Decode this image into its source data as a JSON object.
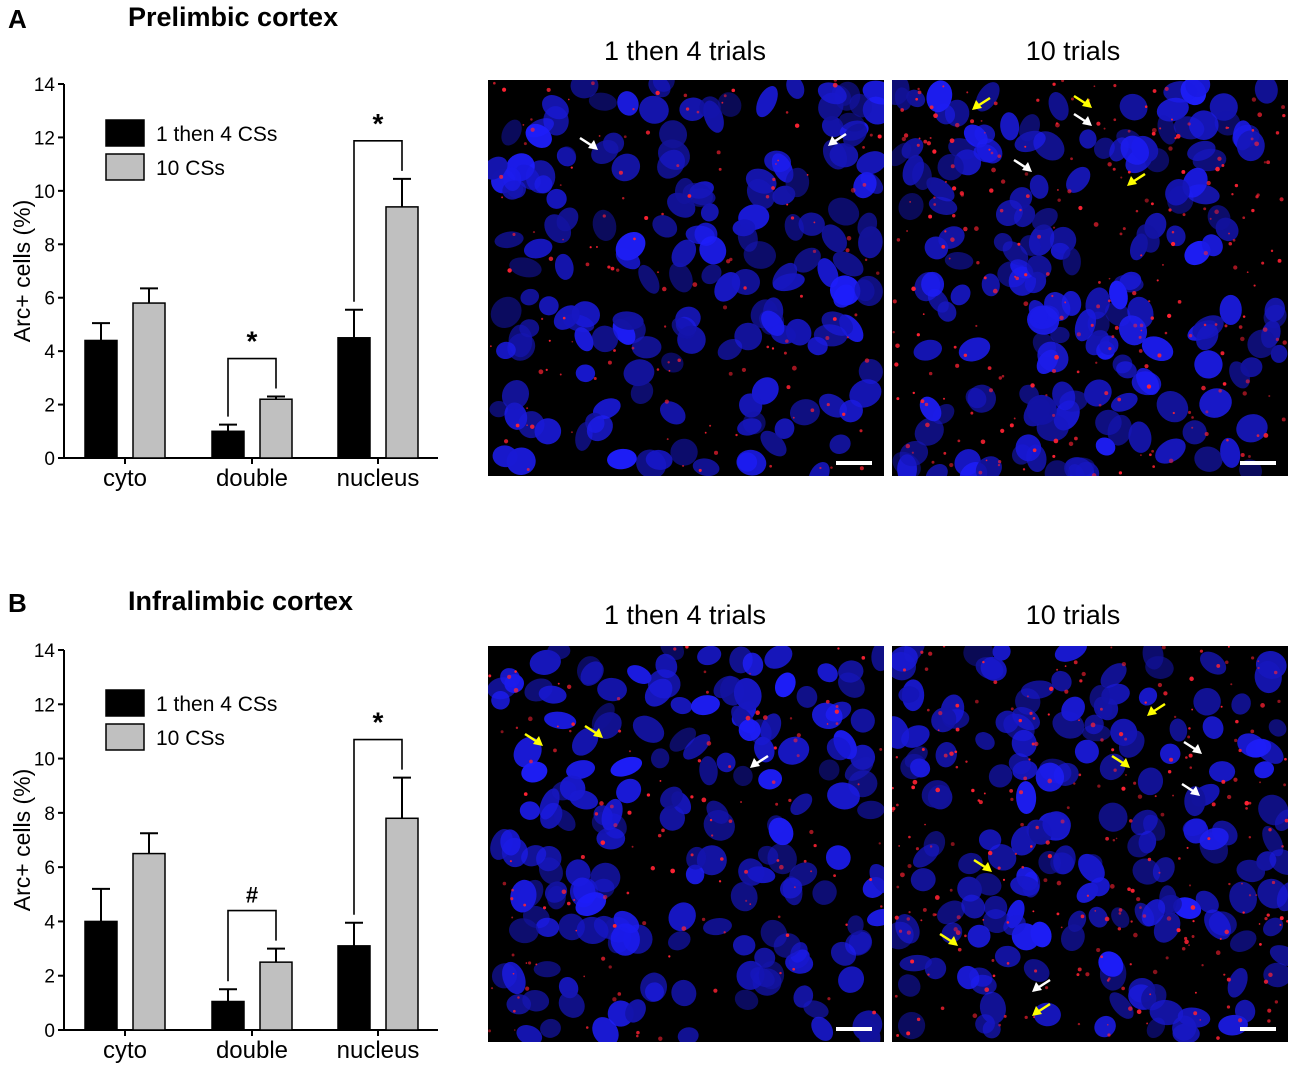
{
  "panels": [
    {
      "letter": "A",
      "region": "Prelimbic cortex",
      "image_titles": [
        "1 then 4 trials",
        "10 trials"
      ],
      "chart_data": {
        "type": "bar",
        "categories": [
          "cyto",
          "double",
          "nucleus"
        ],
        "series": [
          {
            "name": "1 then 4 CSs",
            "color": "#000000",
            "values": [
              4.4,
              1.0,
              4.5
            ],
            "errors": [
              0.65,
              0.25,
              1.05
            ]
          },
          {
            "name": "10 CSs",
            "color": "#c0c0c0",
            "values": [
              5.8,
              2.2,
              9.4
            ],
            "errors": [
              0.55,
              0.1,
              1.05
            ]
          }
        ],
        "ylabel": "Arc+ cells (%)",
        "ylim": [
          0,
          14
        ],
        "yticks": [
          0,
          2,
          4,
          6,
          8,
          10,
          12,
          14
        ],
        "legend": "top-left",
        "significance": [
          {
            "category": "double",
            "label": "*"
          },
          {
            "category": "nucleus",
            "label": "*"
          }
        ]
      }
    },
    {
      "letter": "B",
      "region": "Infralimbic cortex",
      "image_titles": [
        "1 then 4 trials",
        "10 trials"
      ],
      "chart_data": {
        "type": "bar",
        "categories": [
          "cyto",
          "double",
          "nucleus"
        ],
        "series": [
          {
            "name": "1 then 4 CSs",
            "color": "#000000",
            "values": [
              4.0,
              1.05,
              3.1
            ],
            "errors": [
              1.2,
              0.45,
              0.85
            ]
          },
          {
            "name": "10 CSs",
            "color": "#c0c0c0",
            "values": [
              6.5,
              2.5,
              7.8
            ],
            "errors": [
              0.75,
              0.5,
              1.5
            ]
          }
        ],
        "ylabel": "Arc+ cells (%)",
        "ylim": [
          0,
          14
        ],
        "yticks": [
          0,
          2,
          4,
          6,
          8,
          10,
          12,
          14
        ],
        "legend": "top-left",
        "significance": [
          {
            "category": "double",
            "label": "#"
          },
          {
            "category": "nucleus",
            "label": "*"
          }
        ]
      }
    }
  ]
}
